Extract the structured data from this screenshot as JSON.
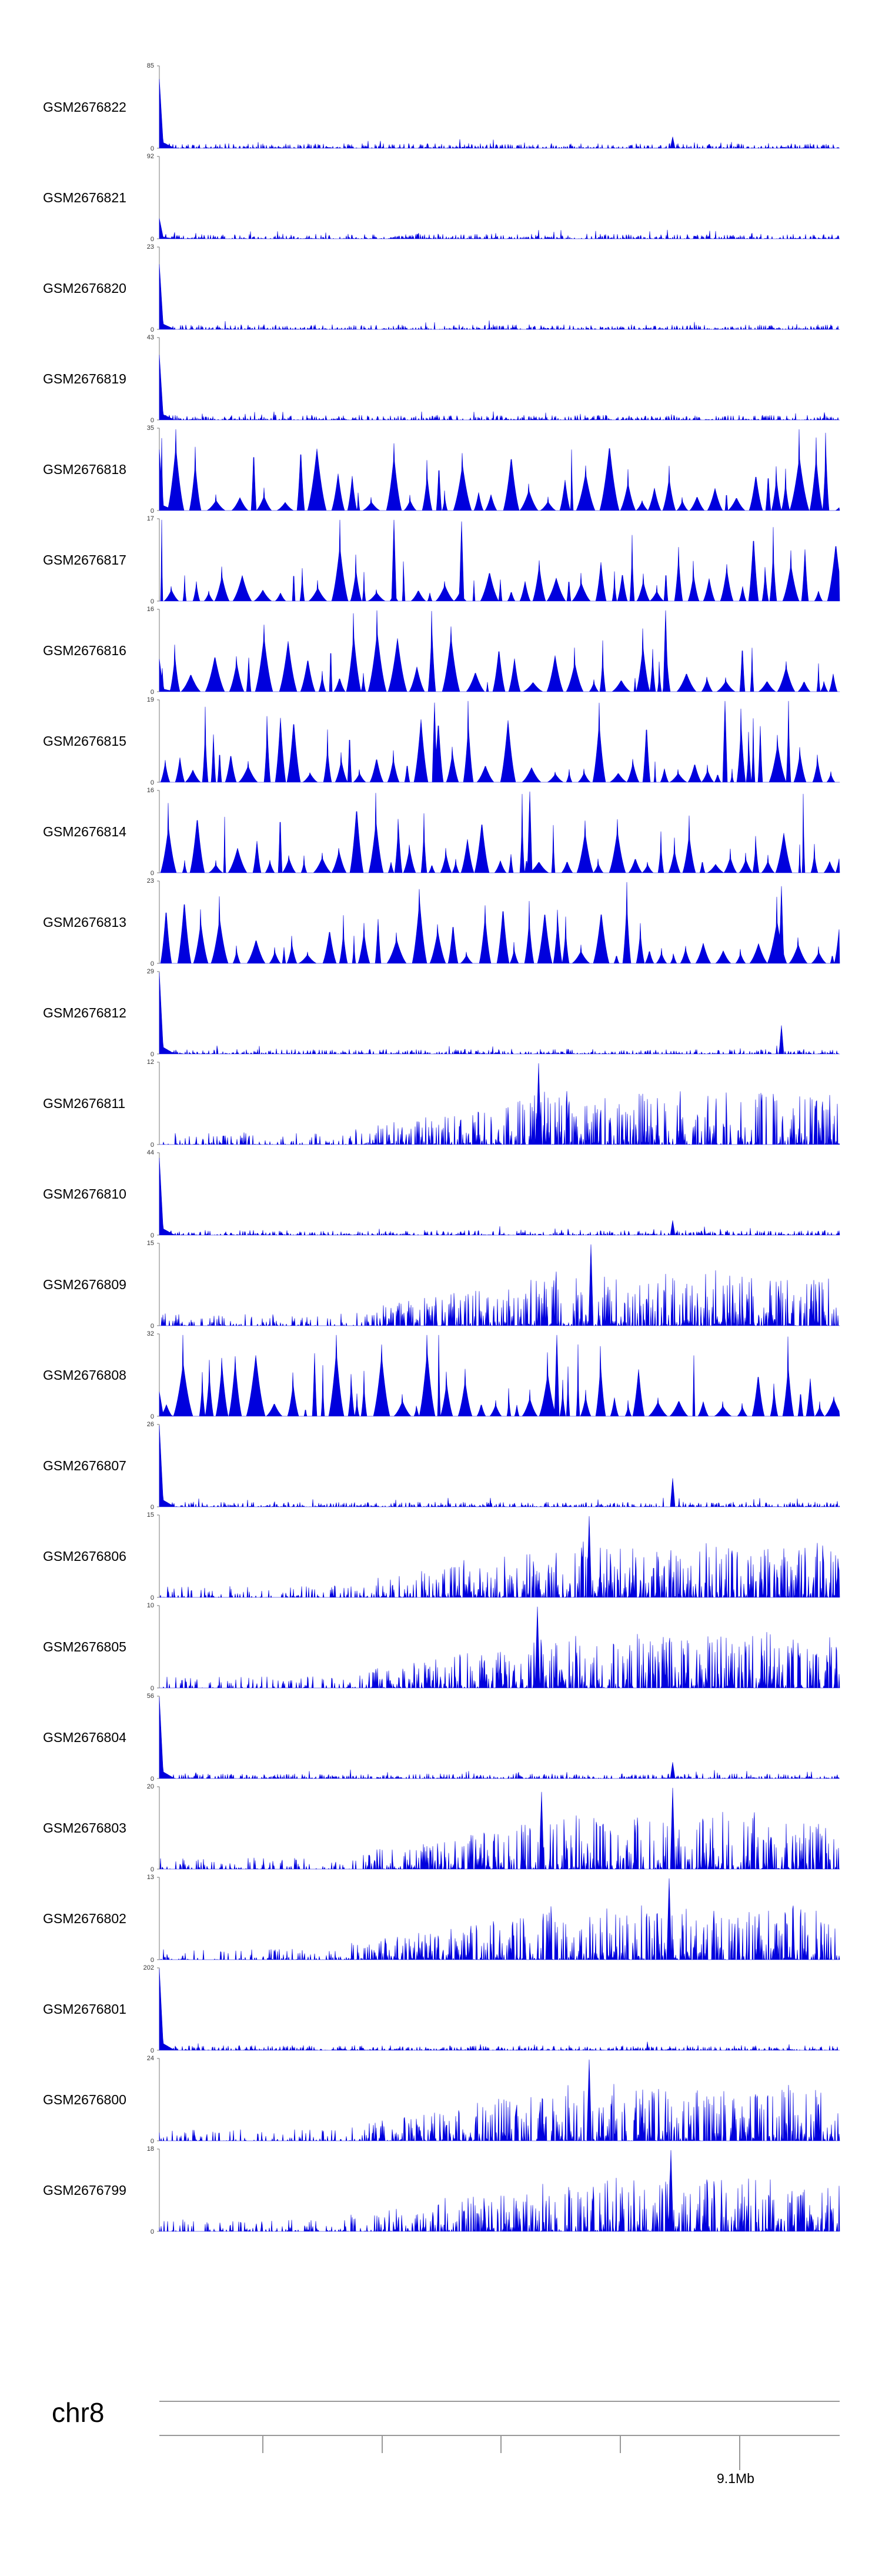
{
  "colors": {
    "signal": "#0000dd",
    "axis": "#777777",
    "text": "#000000"
  },
  "chart_data": {
    "type": "area",
    "title": "",
    "xlabel": "",
    "ylabel": "",
    "chromosome": "chr8",
    "position_label": "9.1Mb",
    "grid": false,
    "legend": "none",
    "series": [
      {
        "name": "GSM2676822",
        "max": 85,
        "style": "dense",
        "seed": 22,
        "lead": 0.85,
        "bumps": [
          [
            0.755,
            0.14
          ]
        ]
      },
      {
        "name": "GSM2676821",
        "max": 92,
        "style": "dense",
        "seed": 21,
        "lead": 0.25,
        "bumps": []
      },
      {
        "name": "GSM2676820",
        "max": 23,
        "style": "dense",
        "seed": 20,
        "lead": 0.8,
        "bumps": []
      },
      {
        "name": "GSM2676819",
        "max": 43,
        "style": "dense",
        "seed": 19,
        "lead": 0.8,
        "bumps": []
      },
      {
        "name": "GSM2676818",
        "max": 35,
        "style": "sparse",
        "seed": 18,
        "lead": 0.75,
        "bumps": []
      },
      {
        "name": "GSM2676817",
        "max": 17,
        "style": "sparse",
        "seed": 17,
        "lead": 0.0,
        "bumps": [
          [
            0.345,
            1.0
          ],
          [
            0.445,
            0.98
          ]
        ]
      },
      {
        "name": "GSM2676816",
        "max": 16,
        "style": "sparse",
        "seed": 16,
        "lead": 0.4,
        "bumps": [
          [
            0.745,
            1.0
          ]
        ]
      },
      {
        "name": "GSM2676815",
        "max": 19,
        "style": "sparse",
        "seed": 15,
        "lead": 0.0,
        "bumps": [
          [
            0.405,
            0.98
          ],
          [
            0.832,
            1.0
          ]
        ]
      },
      {
        "name": "GSM2676814",
        "max": 16,
        "style": "sparse",
        "seed": 14,
        "lead": 0.0,
        "bumps": [
          [
            0.545,
            1.0
          ]
        ]
      },
      {
        "name": "GSM2676813",
        "max": 23,
        "style": "sparse",
        "seed": 13,
        "lead": 0.0,
        "bumps": [
          [
            0.915,
            0.95
          ]
        ]
      },
      {
        "name": "GSM2676812",
        "max": 29,
        "style": "dense",
        "seed": 12,
        "lead": 1.0,
        "bumps": [
          [
            0.915,
            0.35
          ]
        ]
      },
      {
        "name": "GSM2676811",
        "max": 12,
        "style": "growing",
        "seed": 11,
        "lead": 0.0,
        "bumps": [
          [
            0.558,
            1.0
          ]
        ]
      },
      {
        "name": "GSM2676810",
        "max": 44,
        "style": "dense",
        "seed": 10,
        "lead": 0.95,
        "bumps": [
          [
            0.755,
            0.18
          ]
        ]
      },
      {
        "name": "GSM2676809",
        "max": 15,
        "style": "growing",
        "seed": 9,
        "lead": 0.0,
        "bumps": [
          [
            0.635,
            1.0
          ]
        ]
      },
      {
        "name": "GSM2676808",
        "max": 32,
        "style": "sparse",
        "seed": 8,
        "lead": 0.3,
        "bumps": [
          [
            0.585,
            1.0
          ]
        ]
      },
      {
        "name": "GSM2676807",
        "max": 26,
        "style": "dense",
        "seed": 7,
        "lead": 1.0,
        "bumps": [
          [
            0.755,
            0.35
          ]
        ]
      },
      {
        "name": "GSM2676806",
        "max": 15,
        "style": "growing",
        "seed": 6,
        "lead": 0.0,
        "bumps": [
          [
            0.632,
            1.0
          ]
        ]
      },
      {
        "name": "GSM2676805",
        "max": 10,
        "style": "growing",
        "seed": 5,
        "lead": 0.0,
        "bumps": [
          [
            0.556,
            1.0
          ]
        ]
      },
      {
        "name": "GSM2676804",
        "max": 56,
        "style": "dense",
        "seed": 4,
        "lead": 1.0,
        "bumps": [
          [
            0.755,
            0.2
          ]
        ]
      },
      {
        "name": "GSM2676803",
        "max": 20,
        "style": "growing",
        "seed": 3,
        "lead": 0.0,
        "bumps": [
          [
            0.755,
            1.0
          ],
          [
            0.562,
            0.95
          ]
        ]
      },
      {
        "name": "GSM2676802",
        "max": 13,
        "style": "growing",
        "seed": 2,
        "lead": 0.0,
        "bumps": [
          [
            0.75,
            1.0
          ]
        ]
      },
      {
        "name": "GSM2676801",
        "max": 202,
        "style": "dense",
        "seed": 1,
        "lead": 1.0,
        "bumps": []
      },
      {
        "name": "GSM2676800",
        "max": 24,
        "style": "growing",
        "seed": 100,
        "lead": 0.0,
        "bumps": [
          [
            0.632,
            1.0
          ]
        ]
      },
      {
        "name": "GSM2676799",
        "max": 18,
        "style": "growing",
        "seed": 99,
        "lead": 0.0,
        "bumps": [
          [
            0.752,
            1.0
          ]
        ]
      }
    ]
  }
}
